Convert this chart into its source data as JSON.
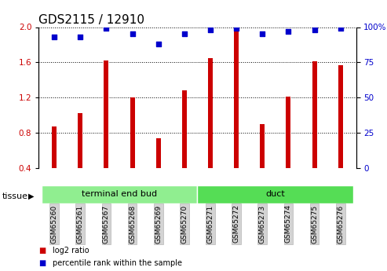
{
  "title": "GDS2115 / 12910",
  "samples": [
    "GSM65260",
    "GSM65261",
    "GSM65267",
    "GSM65268",
    "GSM65269",
    "GSM65270",
    "GSM65271",
    "GSM65272",
    "GSM65273",
    "GSM65274",
    "GSM65275",
    "GSM65276"
  ],
  "log2_ratio": [
    0.87,
    1.02,
    1.62,
    1.2,
    0.74,
    1.28,
    1.65,
    1.95,
    0.9,
    1.21,
    1.61,
    1.57
  ],
  "percentile": [
    93,
    93,
    99,
    95,
    88,
    95,
    98,
    99,
    95,
    97,
    98,
    99
  ],
  "bar_color": "#cc0000",
  "dot_color": "#0000cc",
  "ylim_left": [
    0.4,
    2.0
  ],
  "ylim_right": [
    0,
    100
  ],
  "yticks_left": [
    0.4,
    0.8,
    1.2,
    1.6,
    2.0
  ],
  "yticks_right": [
    0,
    25,
    50,
    75,
    100
  ],
  "tissue_groups": [
    {
      "label": "terminal end bud",
      "start": 0,
      "end": 6,
      "color": "#90EE90"
    },
    {
      "label": "duct",
      "start": 6,
      "end": 12,
      "color": "#55DD55"
    }
  ],
  "tissue_label": "tissue",
  "legend_items": [
    {
      "label": "log2 ratio",
      "color": "#cc0000"
    },
    {
      "label": "percentile rank within the sample",
      "color": "#0000cc"
    }
  ],
  "bar_width": 0.18,
  "bg_color": "#ffffff",
  "plot_area_bg": "#ffffff",
  "tick_label_bg": "#d3d3d3",
  "grid_color": "#000000",
  "title_fontsize": 11,
  "axis_fontsize": 7.5,
  "sample_fontsize": 6.5
}
